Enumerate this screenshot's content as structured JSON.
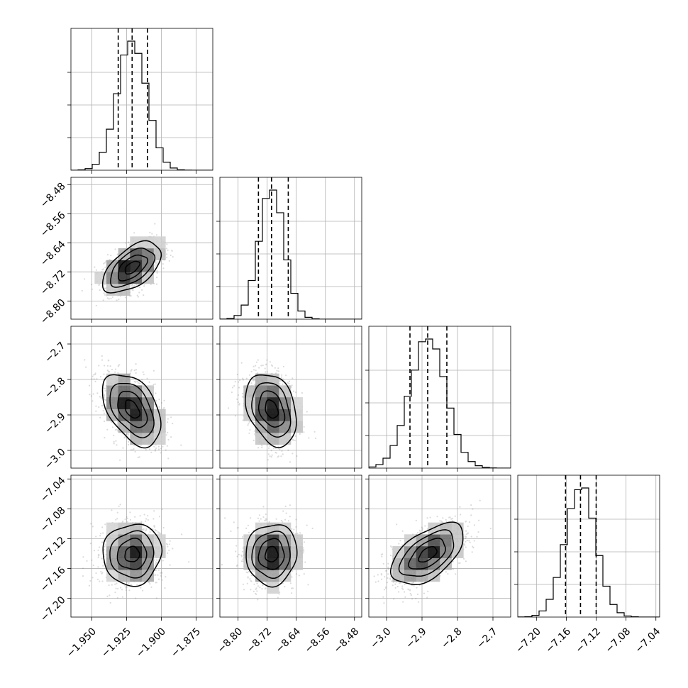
{
  "chart_data": {
    "type": "corner",
    "parameters": [
      {
        "mean": -1.921,
        "sd": 0.0105,
        "lim": [
          -1.965,
          -1.863
        ],
        "ticks": [
          -1.95,
          -1.925,
          -1.9,
          -1.875
        ],
        "tick_labels": [
          "−1.950",
          "−1.925",
          "−1.900",
          "−1.875"
        ],
        "quantiles": [
          -1.931,
          -1.921,
          -1.91
        ]
      },
      {
        "mean": -8.708,
        "sd": 0.035,
        "lim": [
          -8.85,
          -8.46
        ],
        "ticks": [
          -8.8,
          -8.72,
          -8.64,
          -8.56,
          -8.48
        ],
        "tick_labels": [
          "−8.80",
          "−8.72",
          "−8.64",
          "−8.56",
          "−8.48"
        ],
        "quantiles": [
          -8.744,
          -8.708,
          -8.662
        ]
      },
      {
        "mean": -2.884,
        "sd": 0.051,
        "lim": [
          -3.05,
          -2.65
        ],
        "ticks": [
          -3.0,
          -2.9,
          -2.8,
          -2.7
        ],
        "tick_labels": [
          "−3.0",
          "−2.9",
          "−2.8",
          "−2.7"
        ],
        "quantiles": [
          -2.934,
          -2.884,
          -2.83
        ]
      },
      {
        "mean": -7.141,
        "sd": 0.0205,
        "lim": [
          -7.225,
          -7.035
        ],
        "ticks": [
          -7.2,
          -7.16,
          -7.12,
          -7.08,
          -7.04
        ],
        "tick_labels": [
          "−7.20",
          "−7.16",
          "−7.12",
          "−7.08",
          "−7.04"
        ],
        "quantiles": [
          -7.161,
          -7.141,
          -7.12
        ]
      }
    ],
    "correlations": [
      {
        "i": 1,
        "j": 0,
        "r": 0.55
      },
      {
        "i": 2,
        "j": 0,
        "r": -0.45
      },
      {
        "i": 2,
        "j": 1,
        "r": -0.3
      },
      {
        "i": 3,
        "j": 0,
        "r": 0.05
      },
      {
        "i": 3,
        "j": 1,
        "r": 0.05
      },
      {
        "i": 3,
        "j": 2,
        "r": 0.55
      }
    ],
    "contour_levels": [
      0.5,
      1.0,
      1.5,
      2.0
    ],
    "quantile_levels": [
      0.16,
      0.5,
      0.84
    ],
    "grid": true,
    "colors": {
      "line": "#000000",
      "points": "#7f7f7f",
      "grid": "#b0b0b0"
    }
  }
}
